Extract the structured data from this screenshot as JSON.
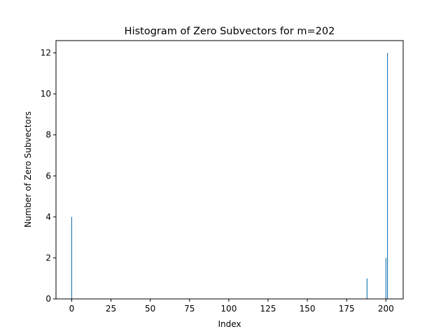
{
  "chart_data": {
    "type": "bar",
    "title": "Histogram of Zero Subvectors for m=202",
    "xlabel": "Index",
    "ylabel": "Number of Zero Subvectors",
    "xlim": [
      -10,
      211
    ],
    "ylim": [
      0,
      12.6
    ],
    "xticks": [
      0,
      25,
      50,
      75,
      100,
      125,
      150,
      175,
      200
    ],
    "yticks": [
      0,
      2,
      4,
      6,
      8,
      10,
      12
    ],
    "bar_color": "#1f77b4",
    "grid": false,
    "points": [
      {
        "x": 0,
        "y": 4
      },
      {
        "x": 188,
        "y": 1
      },
      {
        "x": 200,
        "y": 2
      },
      {
        "x": 201,
        "y": 12
      }
    ]
  }
}
